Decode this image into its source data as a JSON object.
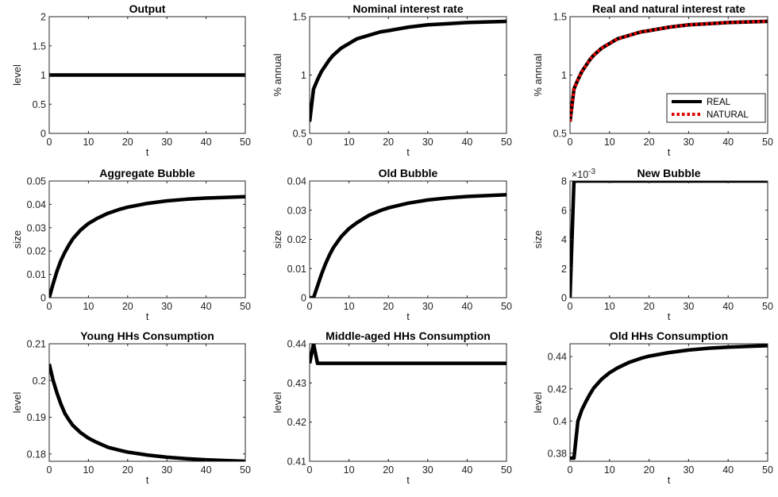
{
  "chart_data": [
    {
      "type": "line",
      "title": "Output",
      "xlabel": "t",
      "ylabel": "level",
      "xlim": [
        0,
        50
      ],
      "ylim": [
        0,
        2
      ],
      "xticks": [
        "0",
        "10",
        "20",
        "30",
        "40",
        "50"
      ],
      "yticks": [
        "0",
        "0.5",
        "1",
        "1.5",
        "2"
      ],
      "series": [
        {
          "x": [
            0,
            10,
            20,
            30,
            40,
            50
          ],
          "y": [
            1,
            1,
            1,
            1,
            1,
            1
          ]
        }
      ]
    },
    {
      "type": "line",
      "title": "Nominal interest rate",
      "xlabel": "t",
      "ylabel": "% annual",
      "xlim": [
        0,
        50
      ],
      "ylim": [
        0.5,
        1.5
      ],
      "xticks": [
        "0",
        "10",
        "20",
        "30",
        "40",
        "50"
      ],
      "yticks": [
        "0.5",
        "1",
        "1.5"
      ],
      "series": [
        {
          "x": [
            0,
            1,
            2,
            3,
            4,
            5,
            6,
            8,
            10,
            12,
            15,
            18,
            20,
            25,
            30,
            35,
            40,
            45,
            50
          ],
          "y": [
            0.6,
            0.88,
            0.96,
            1.03,
            1.08,
            1.13,
            1.17,
            1.23,
            1.27,
            1.31,
            1.34,
            1.37,
            1.38,
            1.41,
            1.43,
            1.44,
            1.45,
            1.455,
            1.46
          ]
        }
      ]
    },
    {
      "type": "line",
      "title": "Real and natural interest rate",
      "xlabel": "t",
      "ylabel": "% annual",
      "xlim": [
        0,
        50
      ],
      "ylim": [
        0.5,
        1.5
      ],
      "xticks": [
        "0",
        "10",
        "20",
        "30",
        "40",
        "50"
      ],
      "yticks": [
        "0.5",
        "1",
        "1.5"
      ],
      "legend": "bottom-right",
      "series": [
        {
          "name": "REAL",
          "color": "#000000",
          "style": "solid",
          "x": [
            0,
            1,
            2,
            3,
            4,
            5,
            6,
            8,
            10,
            12,
            15,
            18,
            20,
            25,
            30,
            35,
            40,
            45,
            50
          ],
          "y": [
            0.6,
            0.88,
            0.96,
            1.03,
            1.08,
            1.13,
            1.17,
            1.23,
            1.27,
            1.31,
            1.34,
            1.37,
            1.38,
            1.41,
            1.43,
            1.44,
            1.45,
            1.455,
            1.46
          ]
        },
        {
          "name": "NATURAL",
          "color": "#e00000",
          "style": "dotted",
          "x": [
            0,
            1,
            2,
            3,
            4,
            5,
            6,
            8,
            10,
            12,
            15,
            18,
            20,
            25,
            30,
            35,
            40,
            45,
            50
          ],
          "y": [
            0.6,
            0.88,
            0.96,
            1.03,
            1.08,
            1.13,
            1.17,
            1.23,
            1.27,
            1.31,
            1.34,
            1.37,
            1.38,
            1.41,
            1.43,
            1.44,
            1.45,
            1.455,
            1.46
          ]
        }
      ]
    },
    {
      "type": "line",
      "title": "Aggregate Bubble",
      "xlabel": "t",
      "ylabel": "size",
      "xlim": [
        0,
        50
      ],
      "ylim": [
        0,
        0.05
      ],
      "xticks": [
        "0",
        "10",
        "20",
        "30",
        "40",
        "50"
      ],
      "yticks": [
        "0",
        "0.01",
        "0.02",
        "0.03",
        "0.04",
        "0.05"
      ],
      "series": [
        {
          "x": [
            0,
            1,
            2,
            3,
            4,
            5,
            6,
            8,
            10,
            12,
            15,
            18,
            20,
            25,
            30,
            35,
            40,
            45,
            50
          ],
          "y": [
            0,
            0.006,
            0.0115,
            0.016,
            0.0195,
            0.0225,
            0.0252,
            0.029,
            0.0318,
            0.0338,
            0.0362,
            0.0379,
            0.0388,
            0.0404,
            0.0415,
            0.0422,
            0.0427,
            0.043,
            0.0433
          ]
        }
      ]
    },
    {
      "type": "line",
      "title": "Old Bubble",
      "xlabel": "t",
      "ylabel": "size",
      "xlim": [
        0,
        50
      ],
      "ylim": [
        0,
        0.04
      ],
      "xticks": [
        "0",
        "10",
        "20",
        "30",
        "40",
        "50"
      ],
      "yticks": [
        "0",
        "0.01",
        "0.02",
        "0.03",
        "0.04"
      ],
      "series": [
        {
          "x": [
            0,
            1,
            2,
            3,
            4,
            5,
            6,
            8,
            10,
            12,
            15,
            18,
            20,
            25,
            30,
            35,
            40,
            45,
            50
          ],
          "y": [
            0,
            0,
            0.004,
            0.008,
            0.0115,
            0.0145,
            0.0171,
            0.0209,
            0.0237,
            0.0257,
            0.0282,
            0.0299,
            0.0308,
            0.0324,
            0.0335,
            0.0342,
            0.0347,
            0.035,
            0.0353
          ]
        }
      ]
    },
    {
      "type": "line",
      "title": "New Bubble",
      "xlabel": "t",
      "ylabel": "size",
      "xlim": [
        0,
        50
      ],
      "ylim": [
        0,
        8
      ],
      "xticks": [
        "0",
        "10",
        "20",
        "30",
        "40",
        "50"
      ],
      "yticks": [
        "0",
        "2",
        "4",
        "6",
        "8"
      ],
      "yscale_label": "×10",
      "yscale_exp": "-3",
      "series": [
        {
          "x": [
            0,
            1,
            50
          ],
          "y": [
            0,
            8,
            8
          ]
        }
      ]
    },
    {
      "type": "line",
      "title": "Young HHs Consumption",
      "xlabel": "t",
      "ylabel": "level",
      "xlim": [
        0,
        50
      ],
      "ylim": [
        0.178,
        0.21
      ],
      "xticks": [
        "0",
        "10",
        "20",
        "30",
        "40",
        "50"
      ],
      "yticks": [
        "0.18",
        "0.19",
        "0.2",
        "0.21"
      ],
      "series": [
        {
          "x": [
            0,
            1,
            2,
            3,
            4,
            5,
            6,
            8,
            10,
            12,
            15,
            18,
            20,
            25,
            30,
            35,
            40,
            45,
            50
          ],
          "y": [
            0.2045,
            0.2,
            0.1965,
            0.1935,
            0.191,
            0.1893,
            0.1878,
            0.1858,
            0.1843,
            0.1832,
            0.1818,
            0.181,
            0.1805,
            0.1797,
            0.1791,
            0.1787,
            0.1784,
            0.1782,
            0.178
          ]
        }
      ]
    },
    {
      "type": "line",
      "title": "Middle-aged HHs Consumption",
      "xlabel": "t",
      "ylabel": "level",
      "xlim": [
        0,
        50
      ],
      "ylim": [
        0.41,
        0.44
      ],
      "xticks": [
        "0",
        "10",
        "20",
        "30",
        "40",
        "50"
      ],
      "yticks": [
        "0.41",
        "0.42",
        "0.43",
        "0.44"
      ],
      "series": [
        {
          "x": [
            0,
            1,
            2,
            50
          ],
          "y": [
            0.435,
            0.44,
            0.435,
            0.435
          ]
        }
      ]
    },
    {
      "type": "line",
      "title": "Old HHs Consumption",
      "xlabel": "t",
      "ylabel": "level",
      "xlim": [
        0,
        50
      ],
      "ylim": [
        0.375,
        0.448
      ],
      "xticks": [
        "0",
        "10",
        "20",
        "30",
        "40",
        "50"
      ],
      "yticks": [
        "0.38",
        "0.4",
        "0.42",
        "0.44"
      ],
      "series": [
        {
          "x": [
            0,
            1,
            2,
            3,
            4,
            5,
            6,
            8,
            10,
            12,
            15,
            18,
            20,
            25,
            30,
            35,
            40,
            45,
            50
          ],
          "y": [
            0.377,
            0.377,
            0.4,
            0.407,
            0.412,
            0.4165,
            0.4205,
            0.426,
            0.43,
            0.433,
            0.4365,
            0.439,
            0.4403,
            0.4425,
            0.4441,
            0.4452,
            0.4459,
            0.4464,
            0.4468
          ]
        }
      ]
    }
  ]
}
